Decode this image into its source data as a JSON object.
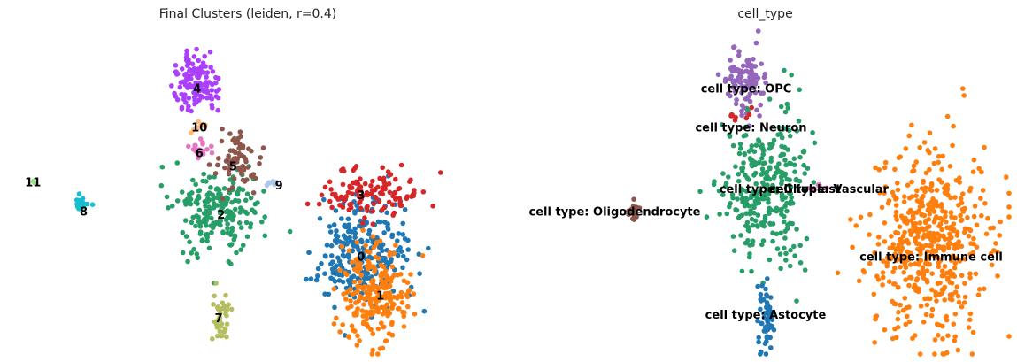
{
  "chart_data": [
    {
      "type": "scatter",
      "title": "Final Clusters (leiden, r=0.4)",
      "xlabel": "",
      "ylabel": "",
      "xlim": [
        0,
        100
      ],
      "ylim": [
        0,
        100
      ],
      "axes_visible": false,
      "grid": false,
      "clusters": [
        {
          "label": "0",
          "color": "#1f77b4",
          "center": [
            73,
            32
          ],
          "spread": [
            5.0,
            8.0
          ],
          "n": 260,
          "label_pos": [
            73,
            30
          ]
        },
        {
          "label": "1",
          "color": "#ff7f0e",
          "center": [
            75.5,
            18
          ],
          "spread": [
            3.8,
            7.5
          ],
          "n": 230,
          "label_pos": [
            77,
            18
          ]
        },
        {
          "label": "2",
          "color": "#279e68",
          "center": [
            43,
            44
          ],
          "spread": [
            4.5,
            7.0
          ],
          "n": 210,
          "label_pos": [
            44,
            43
          ]
        },
        {
          "label": "3",
          "color": "#d62728",
          "center": [
            75,
            50
          ],
          "spread": [
            5.5,
            4.0
          ],
          "n": 120,
          "label_pos": [
            73,
            49
          ]
        },
        {
          "label": "4",
          "color": "#aa40fc",
          "center": [
            39,
            84
          ],
          "spread": [
            2.2,
            4.5
          ],
          "n": 130,
          "label_pos": [
            39,
            82
          ]
        },
        {
          "label": "5",
          "color": "#8c564b",
          "center": [
            47.5,
            60
          ],
          "spread": [
            2.0,
            5.0
          ],
          "n": 70,
          "label_pos": [
            46.5,
            58
          ]
        },
        {
          "label": "6",
          "color": "#e377c2",
          "center": [
            39.5,
            63
          ],
          "spread": [
            1.2,
            1.6
          ],
          "n": 25,
          "label_pos": [
            39.5,
            62
          ]
        },
        {
          "label": "7",
          "color": "#b5bd61",
          "center": [
            44,
            12
          ],
          "spread": [
            1.0,
            4.0
          ],
          "n": 40,
          "label_pos": [
            43.5,
            11
          ]
        },
        {
          "label": "8",
          "color": "#17becf",
          "center": [
            15,
            46
          ],
          "spread": [
            0.8,
            1.6
          ],
          "n": 20,
          "label_pos": [
            15.5,
            44
          ]
        },
        {
          "label": "9",
          "color": "#aec7e8",
          "center": [
            55,
            53
          ],
          "spread": [
            0.8,
            0.5
          ],
          "n": 8,
          "label_pos": [
            56,
            52
          ]
        },
        {
          "label": "10",
          "color": "#ffbb78",
          "center": [
            39.5,
            70
          ],
          "spread": [
            1.0,
            1.0
          ],
          "n": 10,
          "label_pos": [
            39.5,
            70
          ]
        },
        {
          "label": "11",
          "color": "#98df8a",
          "center": [
            5,
            53
          ],
          "spread": [
            0.3,
            0.3
          ],
          "n": 2,
          "label_pos": [
            5,
            53
          ]
        }
      ]
    },
    {
      "type": "scatter",
      "title": "cell_type",
      "xlabel": "",
      "ylabel": "",
      "xlim": [
        0,
        100
      ],
      "ylim": [
        0,
        100
      ],
      "axes_visible": false,
      "grid": false,
      "clusters": [
        {
          "label": "cell type: Immune cell",
          "color": "#ff7f0e",
          "center": [
            84,
            34
          ],
          "spread": [
            6.0,
            15.0
          ],
          "n": 520,
          "label_pos": [
            84,
            30
          ]
        },
        {
          "label": "cell type: Neuron",
          "color": "#279e68",
          "center": [
            50,
            52
          ],
          "spread": [
            4.5,
            12.0
          ],
          "n": 300,
          "label_pos": [
            47,
            70
          ]
        },
        {
          "label": "cell type: OPC",
          "color": "#9467bd",
          "center": [
            46,
            85
          ],
          "spread": [
            1.8,
            4.5
          ],
          "n": 110,
          "label_pos": [
            46,
            82
          ]
        },
        {
          "label": "cell type: Astocyte",
          "color": "#1f77b4",
          "center": [
            50,
            11
          ],
          "spread": [
            0.9,
            5.5
          ],
          "n": 60,
          "label_pos": [
            50,
            12
          ]
        },
        {
          "label": "cell type: Oligodendrocyte",
          "color": "#8c564b",
          "center": [
            23,
            44
          ],
          "spread": [
            0.7,
            1.6
          ],
          "n": 20,
          "label_pos": [
            19,
            44
          ]
        },
        {
          "label": "cell type: Vascular",
          "color": "#e377c2",
          "center": [
            61,
            52
          ],
          "spread": [
            1.0,
            0.6
          ],
          "n": 6,
          "label_pos": [
            63,
            51
          ]
        },
        {
          "label": "cell type: Glioblast",
          "color": "#d62728",
          "center": [
            45,
            73
          ],
          "spread": [
            1.5,
            1.5
          ],
          "n": 8,
          "label_pos": [
            53,
            51
          ]
        }
      ]
    }
  ]
}
